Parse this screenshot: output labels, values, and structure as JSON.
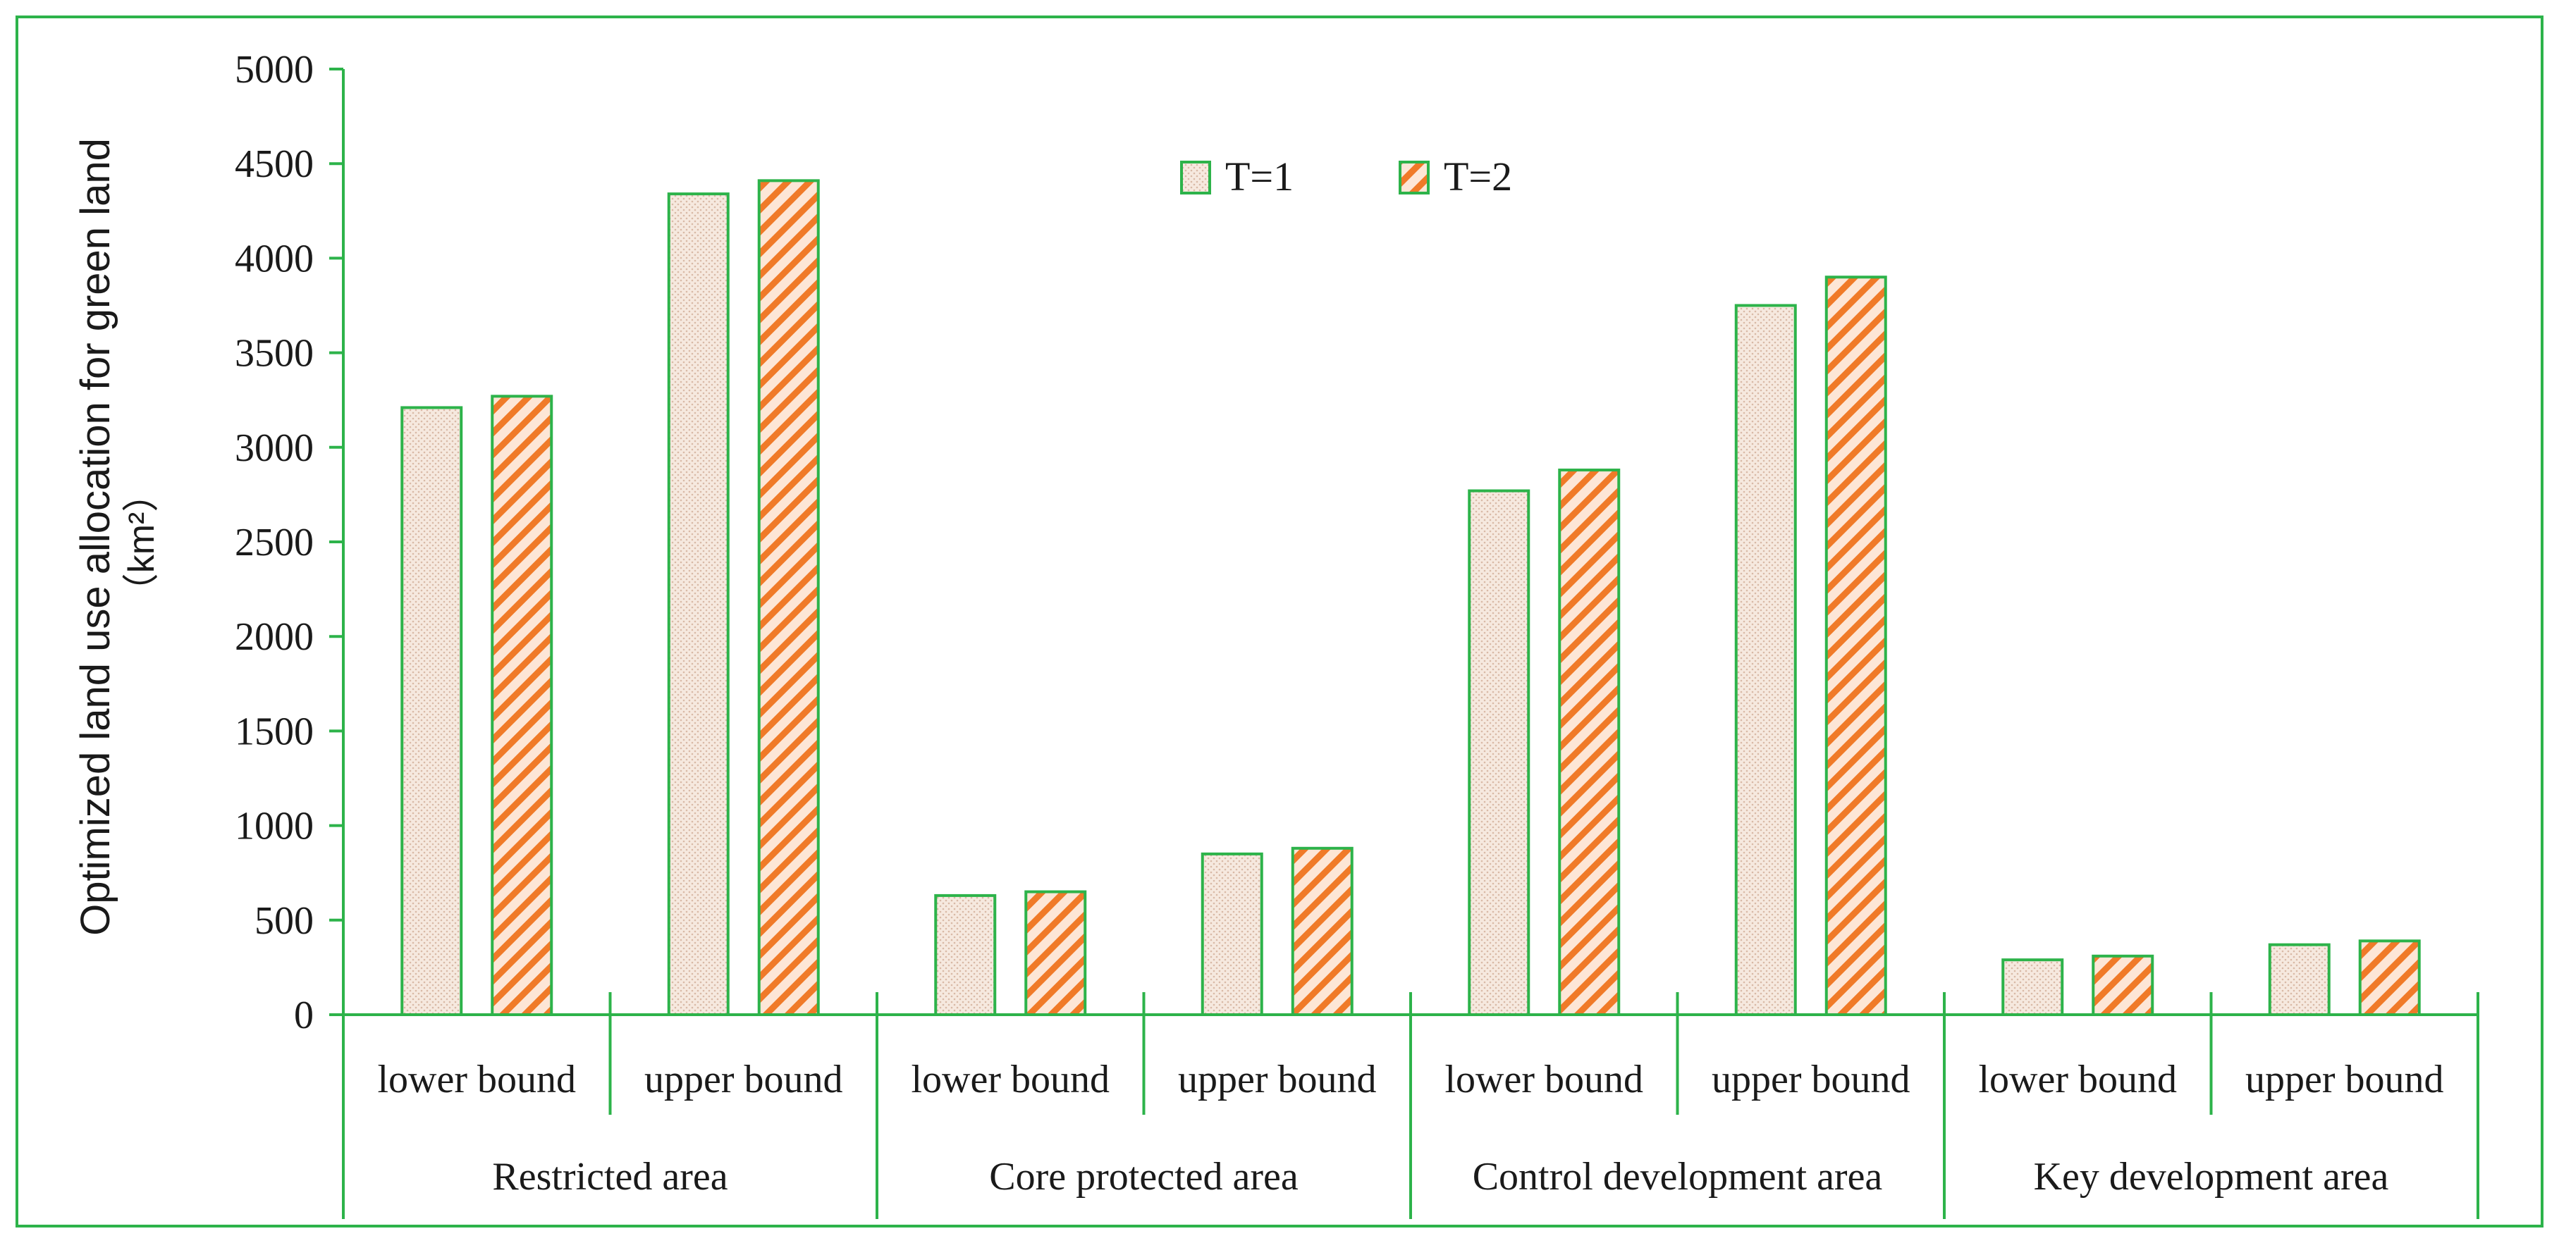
{
  "colors": {
    "frame": "#2db34a",
    "axis": "#2db34a",
    "bar_stroke": "#2db34a",
    "t1_fill": "#f6e9df",
    "t1_dot": "#d9b9a6",
    "t2_fill": "#fde6d6",
    "t2_stripe": "#f07a28",
    "text": "#1a1a1a"
  },
  "chart_data": {
    "type": "bar",
    "title": "",
    "ylabel_line1": "Optimized land use allocation for green land",
    "ylabel_line2": "（km²）",
    "ylim": [
      0,
      5000
    ],
    "yticks": [
      0,
      500,
      1000,
      1500,
      2000,
      2500,
      3000,
      3500,
      4000,
      4500,
      5000
    ],
    "grid": false,
    "legend_position": "top-center",
    "groups": [
      {
        "label": "Restricted area",
        "categories": [
          "lower bound",
          "upper bound"
        ]
      },
      {
        "label": "Core protected area",
        "categories": [
          "lower bound",
          "upper bound"
        ]
      },
      {
        "label": "Control development area",
        "categories": [
          "lower bound",
          "upper bound"
        ]
      },
      {
        "label": "Key development area",
        "categories": [
          "lower bound",
          "upper bound"
        ]
      }
    ],
    "categories": [
      "lower bound",
      "upper bound",
      "lower bound",
      "upper bound",
      "lower bound",
      "upper bound",
      "lower bound",
      "upper bound"
    ],
    "series": [
      {
        "name": "T=1",
        "values": [
          3210,
          4340,
          630,
          850,
          2770,
          3750,
          290,
          370
        ]
      },
      {
        "name": "T=2",
        "values": [
          3270,
          4410,
          650,
          880,
          2880,
          3900,
          310,
          390
        ]
      }
    ]
  }
}
